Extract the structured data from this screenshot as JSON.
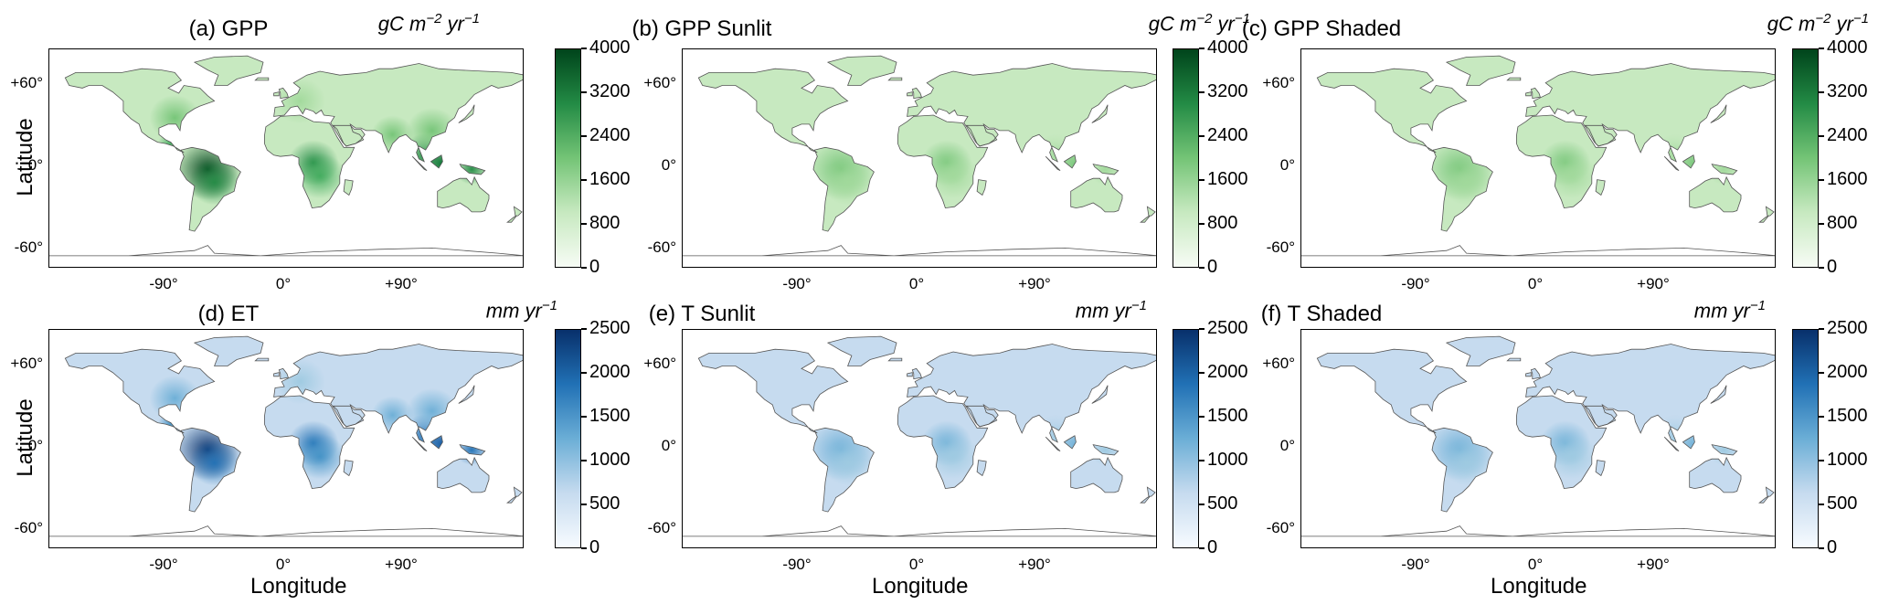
{
  "panels": [
    {
      "title": "(a) GPP",
      "unit": "gC m⁻² yr⁻¹",
      "colormap": "Greens",
      "accent": "#00441b",
      "ticks": [
        "4000",
        "3200",
        "2400",
        "1600",
        "800",
        "0"
      ]
    },
    {
      "title": "(b) GPP Sunlit",
      "unit": "gC m⁻² yr⁻¹",
      "colormap": "Greens",
      "accent": "#00441b",
      "ticks": [
        "4000",
        "3200",
        "2400",
        "1600",
        "800",
        "0"
      ]
    },
    {
      "title": "(c) GPP Shaded",
      "unit": "gC m⁻² yr⁻¹",
      "colormap": "Greens",
      "accent": "#00441b",
      "ticks": [
        "4000",
        "3200",
        "2400",
        "1600",
        "800",
        "0"
      ]
    },
    {
      "title": "(d) ET",
      "unit": "mm yr⁻¹",
      "colormap": "Blues",
      "accent": "#08306b",
      "ticks": [
        "2500",
        "2000",
        "1500",
        "1000",
        "500",
        "0"
      ]
    },
    {
      "title": "(e) T Sunlit",
      "unit": "mm yr⁻¹",
      "colormap": "Blues",
      "accent": "#08306b",
      "ticks": [
        "2500",
        "2000",
        "1500",
        "1000",
        "500",
        "0"
      ]
    },
    {
      "title": "(f) T Shaded",
      "unit": "mm yr⁻¹",
      "colormap": "Blues",
      "accent": "#08306b",
      "ticks": [
        "2500",
        "2000",
        "1500",
        "1000",
        "500",
        "0"
      ]
    }
  ],
  "axes": {
    "lat_ticks": [
      "+60°",
      "0°",
      "-60°"
    ],
    "lon_ticks": [
      "-90°",
      "0°",
      "+90°"
    ],
    "ylabel": "Latitude",
    "xlabel": "Longitude"
  }
}
